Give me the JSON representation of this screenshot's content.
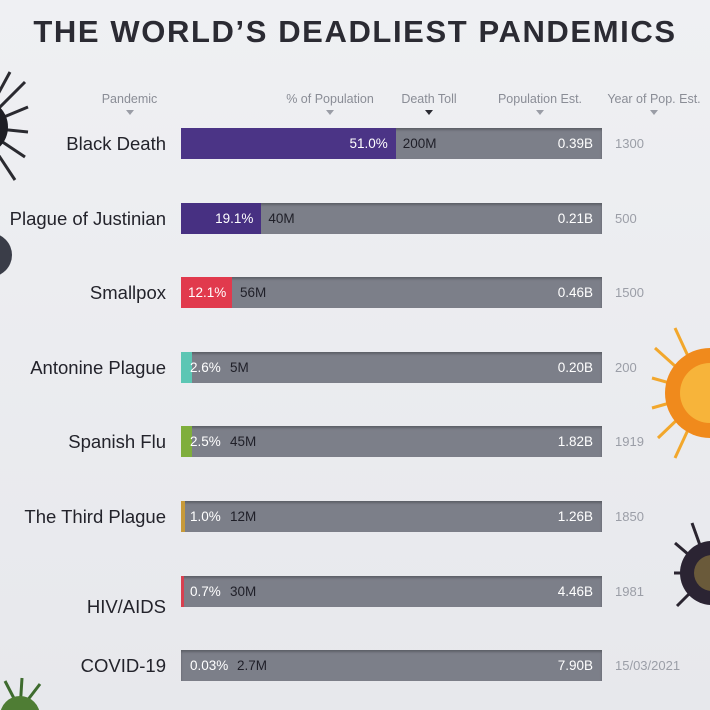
{
  "title": "THE WORLD’S DEADLIEST PANDEMICS",
  "headers": {
    "pandemic": "Pandemic",
    "pct": "% of Population",
    "toll": "Death Toll",
    "pop": "Population Est.",
    "year": "Year of Pop. Est."
  },
  "chart_data": {
    "type": "bar",
    "title": "THE WORLD’S DEADLIEST PANDEMICS",
    "categories": [
      "Black Death",
      "Plague of Justinian",
      "Smallpox",
      "Antonine Plague",
      "Spanish Flu",
      "The Third Plague",
      "HIV/AIDS",
      "COVID-19"
    ],
    "series": [
      {
        "name": "% of Population",
        "values": [
          51.0,
          19.1,
          12.1,
          2.6,
          2.5,
          1.0,
          0.7,
          0.03
        ]
      }
    ],
    "rows": [
      {
        "name": "Black Death",
        "pct": 51.0,
        "pct_label": "51.0%",
        "toll": "200M",
        "pop": "0.39B",
        "year": "1300",
        "color": "#4b3486"
      },
      {
        "name": "Plague of Justinian",
        "pct": 19.1,
        "pct_label": "19.1%",
        "toll": "40M",
        "pop": "0.21B",
        "year": "500",
        "color": "#473082"
      },
      {
        "name": "Smallpox",
        "pct": 12.1,
        "pct_label": "12.1%",
        "toll": "56M",
        "pop": "0.46B",
        "year": "1500",
        "color": "#e13a4d"
      },
      {
        "name": "Antonine Plague",
        "pct": 2.6,
        "pct_label": "2.6%",
        "toll": "5M",
        "pop": "0.20B",
        "year": "200",
        "color": "#5cc6b4"
      },
      {
        "name": "Spanish Flu",
        "pct": 2.5,
        "pct_label": "2.5%",
        "toll": "45M",
        "pop": "1.82B",
        "year": "1919",
        "color": "#7fae3c"
      },
      {
        "name": "The Third Plague",
        "pct": 1.0,
        "pct_label": "1.0%",
        "toll": "12M",
        "pop": "1.26B",
        "year": "1850",
        "color": "#c79a3a"
      },
      {
        "name": "HIV/AIDS",
        "pct": 0.7,
        "pct_label": "0.7%",
        "toll": "30M",
        "pop": "4.46B",
        "year": "1981",
        "color": "#d84050"
      },
      {
        "name": "COVID-19",
        "pct": 0.03,
        "pct_label": "0.03%",
        "toll": "2.7M",
        "pop": "7.90B",
        "year": "15/03/2021",
        "color": "#b8b8c0"
      }
    ],
    "xlim": [
      0,
      100
    ],
    "sort_column": "Death Toll",
    "legend": "none"
  }
}
